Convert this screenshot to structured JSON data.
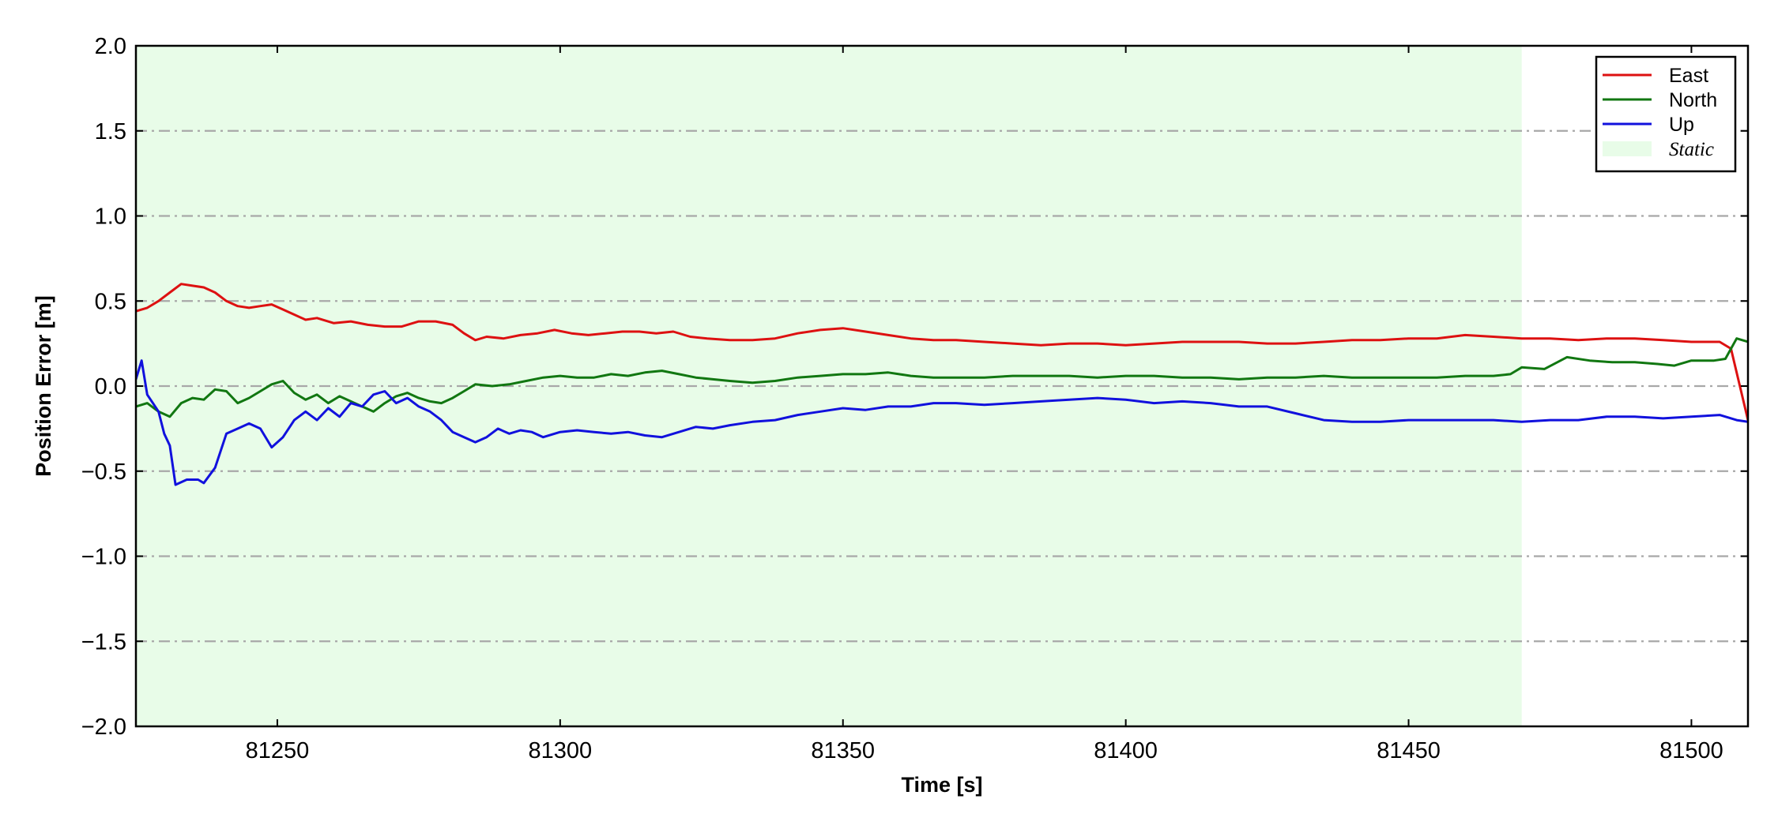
{
  "chart_data": {
    "type": "line",
    "title": "",
    "xlabel": "Time [s]",
    "ylabel": "Position Error [m]",
    "xlim": [
      81225,
      81510
    ],
    "ylim": [
      -2.0,
      2.0
    ],
    "x_ticks": [
      81250,
      81300,
      81350,
      81400,
      81450,
      81500
    ],
    "x_tick_labels": [
      "81250",
      "81300",
      "81350",
      "81400",
      "81450",
      "81500"
    ],
    "y_ticks": [
      2.0,
      1.5,
      1.0,
      0.5,
      0.0,
      -0.5,
      -1.0,
      -1.5,
      -2.0
    ],
    "y_tick_labels": [
      "2.0",
      "1.5",
      "1.0",
      "0.5",
      "0.0",
      "−0.5",
      "−1.0",
      "−1.5",
      "−2.0"
    ],
    "grid": "horizontal dash-dot",
    "legend_position": "top-right",
    "static_region": {
      "label": "Static",
      "x_start": 81225,
      "x_end": 81470,
      "color": "#e8fce8"
    },
    "series": [
      {
        "name": "East",
        "color": "#dd1111",
        "points": [
          [
            81225,
            0.44
          ],
          [
            81227,
            0.46
          ],
          [
            81229,
            0.5
          ],
          [
            81231,
            0.55
          ],
          [
            81233,
            0.6
          ],
          [
            81235,
            0.59
          ],
          [
            81237,
            0.58
          ],
          [
            81239,
            0.55
          ],
          [
            81241,
            0.5
          ],
          [
            81243,
            0.47
          ],
          [
            81245,
            0.46
          ],
          [
            81247,
            0.47
          ],
          [
            81249,
            0.48
          ],
          [
            81251,
            0.45
          ],
          [
            81253,
            0.42
          ],
          [
            81255,
            0.39
          ],
          [
            81257,
            0.4
          ],
          [
            81260,
            0.37
          ],
          [
            81263,
            0.38
          ],
          [
            81266,
            0.36
          ],
          [
            81269,
            0.35
          ],
          [
            81272,
            0.35
          ],
          [
            81275,
            0.38
          ],
          [
            81278,
            0.38
          ],
          [
            81281,
            0.36
          ],
          [
            81283,
            0.31
          ],
          [
            81285,
            0.27
          ],
          [
            81287,
            0.29
          ],
          [
            81290,
            0.28
          ],
          [
            81293,
            0.3
          ],
          [
            81296,
            0.31
          ],
          [
            81299,
            0.33
          ],
          [
            81302,
            0.31
          ],
          [
            81305,
            0.3
          ],
          [
            81308,
            0.31
          ],
          [
            81311,
            0.32
          ],
          [
            81314,
            0.32
          ],
          [
            81317,
            0.31
          ],
          [
            81320,
            0.32
          ],
          [
            81323,
            0.29
          ],
          [
            81326,
            0.28
          ],
          [
            81330,
            0.27
          ],
          [
            81334,
            0.27
          ],
          [
            81338,
            0.28
          ],
          [
            81342,
            0.31
          ],
          [
            81346,
            0.33
          ],
          [
            81350,
            0.34
          ],
          [
            81354,
            0.32
          ],
          [
            81358,
            0.3
          ],
          [
            81362,
            0.28
          ],
          [
            81366,
            0.27
          ],
          [
            81370,
            0.27
          ],
          [
            81375,
            0.26
          ],
          [
            81380,
            0.25
          ],
          [
            81385,
            0.24
          ],
          [
            81390,
            0.25
          ],
          [
            81395,
            0.25
          ],
          [
            81400,
            0.24
          ],
          [
            81405,
            0.25
          ],
          [
            81410,
            0.26
          ],
          [
            81415,
            0.26
          ],
          [
            81420,
            0.26
          ],
          [
            81425,
            0.25
          ],
          [
            81430,
            0.25
          ],
          [
            81435,
            0.26
          ],
          [
            81440,
            0.27
          ],
          [
            81445,
            0.27
          ],
          [
            81450,
            0.28
          ],
          [
            81455,
            0.28
          ],
          [
            81460,
            0.3
          ],
          [
            81465,
            0.29
          ],
          [
            81470,
            0.28
          ],
          [
            81475,
            0.28
          ],
          [
            81480,
            0.27
          ],
          [
            81485,
            0.28
          ],
          [
            81490,
            0.28
          ],
          [
            81495,
            0.27
          ],
          [
            81500,
            0.26
          ],
          [
            81505,
            0.26
          ],
          [
            81507,
            0.22
          ],
          [
            81510,
            -0.2
          ]
        ]
      },
      {
        "name": "North",
        "color": "#117711",
        "points": [
          [
            81225,
            -0.12
          ],
          [
            81227,
            -0.1
          ],
          [
            81229,
            -0.15
          ],
          [
            81231,
            -0.18
          ],
          [
            81233,
            -0.1
          ],
          [
            81235,
            -0.07
          ],
          [
            81237,
            -0.08
          ],
          [
            81239,
            -0.02
          ],
          [
            81241,
            -0.03
          ],
          [
            81243,
            -0.1
          ],
          [
            81245,
            -0.07
          ],
          [
            81247,
            -0.03
          ],
          [
            81249,
            0.01
          ],
          [
            81251,
            0.03
          ],
          [
            81253,
            -0.04
          ],
          [
            81255,
            -0.08
          ],
          [
            81257,
            -0.05
          ],
          [
            81259,
            -0.1
          ],
          [
            81261,
            -0.06
          ],
          [
            81263,
            -0.09
          ],
          [
            81265,
            -0.12
          ],
          [
            81267,
            -0.15
          ],
          [
            81269,
            -0.1
          ],
          [
            81271,
            -0.06
          ],
          [
            81273,
            -0.04
          ],
          [
            81275,
            -0.07
          ],
          [
            81277,
            -0.09
          ],
          [
            81279,
            -0.1
          ],
          [
            81281,
            -0.07
          ],
          [
            81283,
            -0.03
          ],
          [
            81285,
            0.01
          ],
          [
            81288,
            0.0
          ],
          [
            81291,
            0.01
          ],
          [
            81294,
            0.03
          ],
          [
            81297,
            0.05
          ],
          [
            81300,
            0.06
          ],
          [
            81303,
            0.05
          ],
          [
            81306,
            0.05
          ],
          [
            81309,
            0.07
          ],
          [
            81312,
            0.06
          ],
          [
            81315,
            0.08
          ],
          [
            81318,
            0.09
          ],
          [
            81321,
            0.07
          ],
          [
            81324,
            0.05
          ],
          [
            81327,
            0.04
          ],
          [
            81330,
            0.03
          ],
          [
            81334,
            0.02
          ],
          [
            81338,
            0.03
          ],
          [
            81342,
            0.05
          ],
          [
            81346,
            0.06
          ],
          [
            81350,
            0.07
          ],
          [
            81354,
            0.07
          ],
          [
            81358,
            0.08
          ],
          [
            81362,
            0.06
          ],
          [
            81366,
            0.05
          ],
          [
            81370,
            0.05
          ],
          [
            81375,
            0.05
          ],
          [
            81380,
            0.06
          ],
          [
            81385,
            0.06
          ],
          [
            81390,
            0.06
          ],
          [
            81395,
            0.05
          ],
          [
            81400,
            0.06
          ],
          [
            81405,
            0.06
          ],
          [
            81410,
            0.05
          ],
          [
            81415,
            0.05
          ],
          [
            81420,
            0.04
          ],
          [
            81425,
            0.05
          ],
          [
            81430,
            0.05
          ],
          [
            81435,
            0.06
          ],
          [
            81440,
            0.05
          ],
          [
            81445,
            0.05
          ],
          [
            81450,
            0.05
          ],
          [
            81455,
            0.05
          ],
          [
            81460,
            0.06
          ],
          [
            81465,
            0.06
          ],
          [
            81468,
            0.07
          ],
          [
            81470,
            0.11
          ],
          [
            81474,
            0.1
          ],
          [
            81478,
            0.17
          ],
          [
            81482,
            0.15
          ],
          [
            81486,
            0.14
          ],
          [
            81490,
            0.14
          ],
          [
            81494,
            0.13
          ],
          [
            81497,
            0.12
          ],
          [
            81500,
            0.15
          ],
          [
            81504,
            0.15
          ],
          [
            81506,
            0.16
          ],
          [
            81508,
            0.28
          ],
          [
            81510,
            0.26
          ]
        ]
      },
      {
        "name": "Up",
        "color": "#1111dd",
        "points": [
          [
            81225,
            0.04
          ],
          [
            81226,
            0.15
          ],
          [
            81227,
            -0.05
          ],
          [
            81228,
            -0.1
          ],
          [
            81229,
            -0.15
          ],
          [
            81230,
            -0.28
          ],
          [
            81231,
            -0.35
          ],
          [
            81232,
            -0.58
          ],
          [
            81234,
            -0.55
          ],
          [
            81236,
            -0.55
          ],
          [
            81237,
            -0.57
          ],
          [
            81239,
            -0.48
          ],
          [
            81241,
            -0.28
          ],
          [
            81243,
            -0.25
          ],
          [
            81245,
            -0.22
          ],
          [
            81247,
            -0.25
          ],
          [
            81249,
            -0.36
          ],
          [
            81251,
            -0.3
          ],
          [
            81253,
            -0.2
          ],
          [
            81255,
            -0.15
          ],
          [
            81257,
            -0.2
          ],
          [
            81259,
            -0.13
          ],
          [
            81261,
            -0.18
          ],
          [
            81263,
            -0.1
          ],
          [
            81265,
            -0.12
          ],
          [
            81267,
            -0.05
          ],
          [
            81269,
            -0.03
          ],
          [
            81271,
            -0.1
          ],
          [
            81273,
            -0.07
          ],
          [
            81275,
            -0.12
          ],
          [
            81277,
            -0.15
          ],
          [
            81279,
            -0.2
          ],
          [
            81281,
            -0.27
          ],
          [
            81283,
            -0.3
          ],
          [
            81285,
            -0.33
          ],
          [
            81287,
            -0.3
          ],
          [
            81289,
            -0.25
          ],
          [
            81291,
            -0.28
          ],
          [
            81293,
            -0.26
          ],
          [
            81295,
            -0.27
          ],
          [
            81297,
            -0.3
          ],
          [
            81300,
            -0.27
          ],
          [
            81303,
            -0.26
          ],
          [
            81306,
            -0.27
          ],
          [
            81309,
            -0.28
          ],
          [
            81312,
            -0.27
          ],
          [
            81315,
            -0.29
          ],
          [
            81318,
            -0.3
          ],
          [
            81321,
            -0.27
          ],
          [
            81324,
            -0.24
          ],
          [
            81327,
            -0.25
          ],
          [
            81330,
            -0.23
          ],
          [
            81334,
            -0.21
          ],
          [
            81338,
            -0.2
          ],
          [
            81342,
            -0.17
          ],
          [
            81346,
            -0.15
          ],
          [
            81350,
            -0.13
          ],
          [
            81354,
            -0.14
          ],
          [
            81358,
            -0.12
          ],
          [
            81362,
            -0.12
          ],
          [
            81366,
            -0.1
          ],
          [
            81370,
            -0.1
          ],
          [
            81375,
            -0.11
          ],
          [
            81380,
            -0.1
          ],
          [
            81385,
            -0.09
          ],
          [
            81390,
            -0.08
          ],
          [
            81395,
            -0.07
          ],
          [
            81400,
            -0.08
          ],
          [
            81405,
            -0.1
          ],
          [
            81410,
            -0.09
          ],
          [
            81415,
            -0.1
          ],
          [
            81420,
            -0.12
          ],
          [
            81425,
            -0.12
          ],
          [
            81430,
            -0.16
          ],
          [
            81435,
            -0.2
          ],
          [
            81440,
            -0.21
          ],
          [
            81445,
            -0.21
          ],
          [
            81450,
            -0.2
          ],
          [
            81455,
            -0.2
          ],
          [
            81460,
            -0.2
          ],
          [
            81465,
            -0.2
          ],
          [
            81470,
            -0.21
          ],
          [
            81475,
            -0.2
          ],
          [
            81480,
            -0.2
          ],
          [
            81485,
            -0.18
          ],
          [
            81490,
            -0.18
          ],
          [
            81495,
            -0.19
          ],
          [
            81500,
            -0.18
          ],
          [
            81505,
            -0.17
          ],
          [
            81508,
            -0.2
          ],
          [
            81510,
            -0.21
          ]
        ]
      }
    ]
  }
}
